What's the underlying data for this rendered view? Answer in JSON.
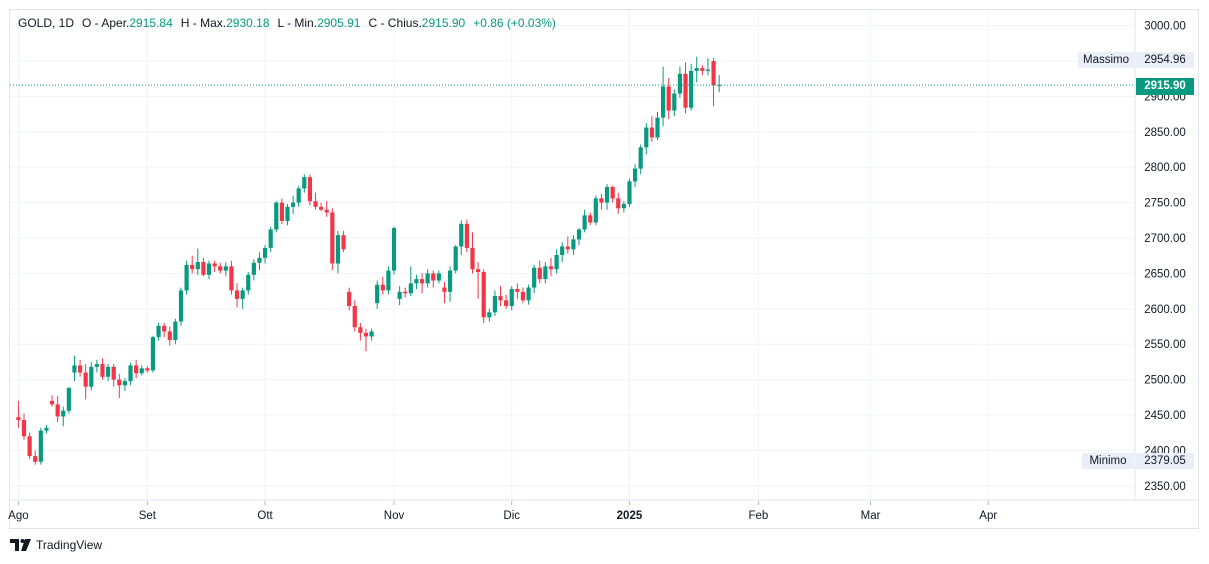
{
  "legend": {
    "symbol": "GOLD, 1D",
    "open_prefix": "O - Aper.",
    "open": "2915.84",
    "high_prefix": "H - Max.",
    "high": "2930.18",
    "low_prefix": "L - Min.",
    "low": "2905.91",
    "close_prefix": "C - Chius.",
    "close": "2915.90",
    "change": "+0.86 (+0.03%)"
  },
  "labels": {
    "max_label": "Massimo",
    "max_value": "2954.96",
    "min_label": "Minimo",
    "min_value": "2379.05",
    "last_price": "2915.90"
  },
  "brand": {
    "name": "TradingView",
    "icon": "tradingview-logo-icon"
  },
  "colors": {
    "up": "#089981",
    "down": "#f23645",
    "grid": "#f0f3fa",
    "axis_text": "#131722"
  },
  "chart_data": {
    "type": "candlestick",
    "title": "GOLD, 1D",
    "ylim": [
      2330,
      3022
    ],
    "y_ticks": [
      "3000.00",
      "2950.00",
      "2900.00",
      "2850.00",
      "2800.00",
      "2750.00",
      "2700.00",
      "2650.00",
      "2600.00",
      "2550.00",
      "2500.00",
      "2450.00",
      "2400.00",
      "2350.00"
    ],
    "x_ticks": [
      {
        "label": "Ago",
        "day": 0,
        "bold": false
      },
      {
        "label": "Set",
        "day": 23,
        "bold": false
      },
      {
        "label": "Ott",
        "day": 44,
        "bold": false
      },
      {
        "label": "Nov",
        "day": 67,
        "bold": false
      },
      {
        "label": "Dic",
        "day": 88,
        "bold": false
      },
      {
        "label": "2025",
        "day": 109,
        "bold": true
      },
      {
        "label": "Feb",
        "day": 132,
        "bold": false
      },
      {
        "label": "Mar",
        "day": 152,
        "bold": false
      },
      {
        "label": "Apr",
        "day": 173,
        "bold": false
      }
    ],
    "x_range_days": [
      -1.5,
      199
    ],
    "last_price": 2915.9,
    "candles": [
      [
        0,
        2447,
        2470,
        2432,
        2443
      ],
      [
        1,
        2443,
        2452,
        2415,
        2420
      ],
      [
        2,
        2420,
        2425,
        2388,
        2392
      ],
      [
        3,
        2392,
        2400,
        2380,
        2384
      ],
      [
        4,
        2384,
        2432,
        2380,
        2428
      ],
      [
        5,
        2428,
        2436,
        2424,
        2432
      ],
      [
        6,
        2470,
        2478,
        2462,
        2465
      ],
      [
        7,
        2465,
        2477,
        2440,
        2448
      ],
      [
        8,
        2448,
        2462,
        2434,
        2456
      ],
      [
        9,
        2456,
        2490,
        2452,
        2488
      ],
      [
        10,
        2510,
        2534,
        2498,
        2520
      ],
      [
        11,
        2520,
        2528,
        2504,
        2510
      ],
      [
        12,
        2510,
        2522,
        2472,
        2490
      ],
      [
        13,
        2490,
        2525,
        2485,
        2518
      ],
      [
        14,
        2518,
        2528,
        2510,
        2522
      ],
      [
        15,
        2522,
        2530,
        2500,
        2504
      ],
      [
        16,
        2504,
        2522,
        2498,
        2518
      ],
      [
        17,
        2518,
        2522,
        2490,
        2500
      ],
      [
        18,
        2500,
        2508,
        2474,
        2492
      ],
      [
        19,
        2492,
        2502,
        2484,
        2498
      ],
      [
        20,
        2498,
        2524,
        2492,
        2520
      ],
      [
        21,
        2520,
        2528,
        2502,
        2509
      ],
      [
        22,
        2509,
        2520,
        2506,
        2516
      ],
      [
        23,
        2516,
        2519,
        2510,
        2513
      ],
      [
        24,
        2513,
        2562,
        2510,
        2560
      ],
      [
        25,
        2560,
        2580,
        2555,
        2576
      ],
      [
        26,
        2576,
        2580,
        2560,
        2568
      ],
      [
        27,
        2568,
        2575,
        2548,
        2556
      ],
      [
        28,
        2556,
        2586,
        2550,
        2582
      ],
      [
        29,
        2582,
        2630,
        2576,
        2626
      ],
      [
        30,
        2626,
        2668,
        2620,
        2662
      ],
      [
        31,
        2662,
        2675,
        2650,
        2656
      ],
      [
        32,
        2656,
        2685,
        2648,
        2666
      ],
      [
        33,
        2666,
        2672,
        2646,
        2648
      ],
      [
        34,
        2648,
        2668,
        2642,
        2664
      ],
      [
        35,
        2664,
        2668,
        2652,
        2660
      ],
      [
        36,
        2660,
        2665,
        2650,
        2654
      ],
      [
        37,
        2654,
        2666,
        2646,
        2660
      ],
      [
        38,
        2660,
        2668,
        2620,
        2626
      ],
      [
        39,
        2626,
        2636,
        2602,
        2614
      ],
      [
        40,
        2614,
        2630,
        2600,
        2626
      ],
      [
        41,
        2626,
        2652,
        2620,
        2648
      ],
      [
        42,
        2648,
        2670,
        2640,
        2665
      ],
      [
        43,
        2665,
        2680,
        2655,
        2672
      ],
      [
        44,
        2672,
        2690,
        2664,
        2686
      ],
      [
        45,
        2686,
        2716,
        2680,
        2712
      ],
      [
        46,
        2712,
        2752,
        2708,
        2750
      ],
      [
        47,
        2750,
        2756,
        2720,
        2724
      ],
      [
        48,
        2724,
        2748,
        2718,
        2744
      ],
      [
        49,
        2744,
        2760,
        2734,
        2750
      ],
      [
        50,
        2750,
        2774,
        2744,
        2770
      ],
      [
        51,
        2770,
        2790,
        2764,
        2786
      ],
      [
        52,
        2786,
        2790,
        2746,
        2752
      ],
      [
        53,
        2752,
        2764,
        2740,
        2744
      ],
      [
        54,
        2744,
        2750,
        2738,
        2740
      ],
      [
        55,
        2740,
        2752,
        2730,
        2736
      ],
      [
        56,
        2736,
        2742,
        2655,
        2664
      ],
      [
        57,
        2664,
        2710,
        2650,
        2704
      ],
      [
        58,
        2704,
        2710,
        2680,
        2684
      ],
      [
        59,
        2624,
        2630,
        2598,
        2604
      ],
      [
        60,
        2604,
        2612,
        2568,
        2574
      ],
      [
        61,
        2574,
        2580,
        2555,
        2566
      ],
      [
        62,
        2566,
        2572,
        2540,
        2561
      ],
      [
        63,
        2561,
        2572,
        2555,
        2568
      ],
      [
        64,
        2608,
        2640,
        2600,
        2634
      ],
      [
        65,
        2634,
        2645,
        2620,
        2626
      ],
      [
        66,
        2626,
        2660,
        2620,
        2654
      ],
      [
        67,
        2654,
        2716,
        2648,
        2714
      ],
      [
        68,
        2614,
        2632,
        2605,
        2624
      ],
      [
        69,
        2624,
        2630,
        2616,
        2622
      ],
      [
        70,
        2622,
        2660,
        2618,
        2636
      ],
      [
        71,
        2636,
        2648,
        2628,
        2642
      ],
      [
        72,
        2642,
        2650,
        2622,
        2636
      ],
      [
        73,
        2636,
        2656,
        2630,
        2650
      ],
      [
        74,
        2650,
        2654,
        2630,
        2640
      ],
      [
        75,
        2640,
        2654,
        2636,
        2650
      ],
      [
        76,
        2630,
        2638,
        2608,
        2624
      ],
      [
        77,
        2624,
        2660,
        2610,
        2654
      ],
      [
        78,
        2654,
        2690,
        2650,
        2688
      ],
      [
        79,
        2688,
        2725,
        2676,
        2720
      ],
      [
        80,
        2720,
        2726,
        2680,
        2686
      ],
      [
        81,
        2686,
        2708,
        2650,
        2656
      ],
      [
        82,
        2656,
        2666,
        2614,
        2652
      ],
      [
        83,
        2652,
        2656,
        2580,
        2588
      ],
      [
        84,
        2588,
        2600,
        2582,
        2595
      ],
      [
        85,
        2595,
        2626,
        2590,
        2618
      ],
      [
        86,
        2618,
        2632,
        2604,
        2612
      ],
      [
        87,
        2612,
        2620,
        2600,
        2604
      ],
      [
        88,
        2604,
        2632,
        2598,
        2628
      ],
      [
        89,
        2628,
        2636,
        2614,
        2624
      ],
      [
        90,
        2624,
        2630,
        2608,
        2612
      ],
      [
        91,
        2612,
        2634,
        2606,
        2630
      ],
      [
        92,
        2630,
        2662,
        2622,
        2658
      ],
      [
        93,
        2658,
        2668,
        2636,
        2642
      ],
      [
        94,
        2642,
        2666,
        2636,
        2660
      ],
      [
        95,
        2660,
        2672,
        2646,
        2656
      ],
      [
        96,
        2656,
        2684,
        2650,
        2676
      ],
      [
        97,
        2676,
        2694,
        2666,
        2688
      ],
      [
        98,
        2688,
        2702,
        2678,
        2684
      ],
      [
        99,
        2684,
        2704,
        2676,
        2698
      ],
      [
        100,
        2698,
        2714,
        2690,
        2712
      ],
      [
        101,
        2712,
        2740,
        2708,
        2732
      ],
      [
        102,
        2732,
        2736,
        2718,
        2722
      ],
      [
        103,
        2722,
        2760,
        2718,
        2756
      ],
      [
        104,
        2756,
        2762,
        2740,
        2750
      ],
      [
        105,
        2750,
        2776,
        2740,
        2772
      ],
      [
        106,
        2772,
        2774,
        2750,
        2756
      ],
      [
        107,
        2756,
        2764,
        2734,
        2742
      ],
      [
        108,
        2742,
        2752,
        2736,
        2748
      ],
      [
        109,
        2748,
        2784,
        2744,
        2780
      ],
      [
        110,
        2780,
        2804,
        2772,
        2798
      ],
      [
        111,
        2798,
        2832,
        2790,
        2828
      ],
      [
        112,
        2828,
        2862,
        2818,
        2856
      ],
      [
        113,
        2856,
        2872,
        2836,
        2842
      ],
      [
        114,
        2842,
        2878,
        2838,
        2870
      ],
      [
        115,
        2870,
        2942,
        2858,
        2914
      ],
      [
        116,
        2914,
        2926,
        2868,
        2880
      ],
      [
        117,
        2880,
        2910,
        2872,
        2904
      ],
      [
        118,
        2904,
        2942,
        2898,
        2932
      ],
      [
        119,
        2932,
        2948,
        2876,
        2884
      ],
      [
        120,
        2884,
        2946,
        2880,
        2936
      ],
      [
        121,
        2936,
        2956,
        2920,
        2940
      ],
      [
        122,
        2940,
        2944,
        2930,
        2936
      ],
      [
        123,
        2936,
        2954,
        2930,
        2938
      ],
      [
        124,
        2950,
        2954,
        2886,
        2916
      ],
      [
        125,
        2915.84,
        2930.18,
        2905.91,
        2915.9
      ]
    ]
  }
}
